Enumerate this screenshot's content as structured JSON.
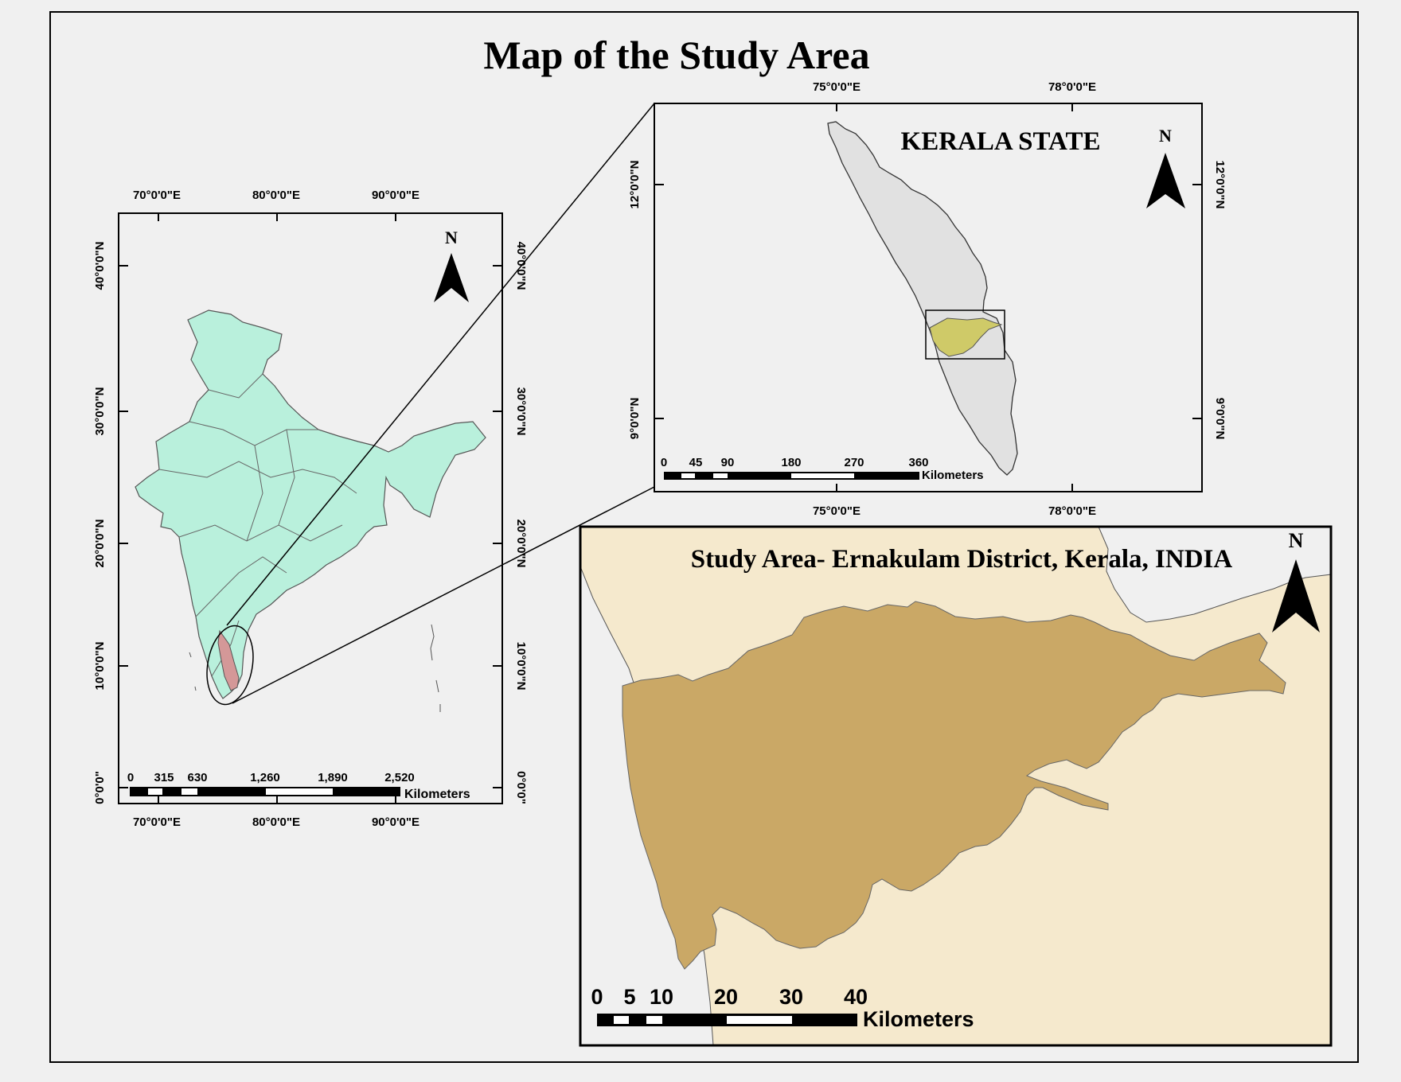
{
  "title": "Map of the Study Area",
  "colors": {
    "background": "#f0f0f0",
    "india_fill": "#b9f0dc",
    "kerala_highlight": "#d49898",
    "kerala_state_fill": "#e1e1e1",
    "ernakulam_highlight": "#cfca68",
    "district_fill": "#caa866",
    "surrounding_fill": "#f5e9cd"
  },
  "india_map": {
    "north_label": "N",
    "top_ticks": [
      "70°0'0\"E",
      "80°0'0\"E",
      "90°0'0\"E"
    ],
    "bottom_ticks": [
      "70°0'0\"E",
      "80°0'0\"E",
      "90°0'0\"E"
    ],
    "lat_ticks": [
      "40°0'0\"N",
      "30°0'0\"N",
      "20°0'0\"N",
      "10°0'0\"N",
      "0°0'0\""
    ],
    "scale": {
      "labels": [
        "0",
        "315",
        "630",
        "1,260",
        "1,890",
        "2,520"
      ],
      "unit": "Kilometers"
    }
  },
  "kerala_map": {
    "title": "KERALA STATE",
    "north_label": "N",
    "top_ticks": [
      "75°0'0\"E",
      "78°0'0\"E"
    ],
    "bottom_ticks": [
      "75°0'0\"E",
      "78°0'0\"E"
    ],
    "lat_ticks": [
      "12°0'0\"N",
      "9°0'0\"N"
    ],
    "scale": {
      "labels": [
        "0",
        "45",
        "90",
        "180",
        "270",
        "360"
      ],
      "unit": "Kilometers"
    }
  },
  "district_map": {
    "title": "Study Area- Ernakulam District, Kerala, INDIA",
    "north_label": "N",
    "scale": {
      "labels": [
        "0",
        "5",
        "10",
        "20",
        "30",
        "40"
      ],
      "unit": "Kilometers"
    }
  }
}
